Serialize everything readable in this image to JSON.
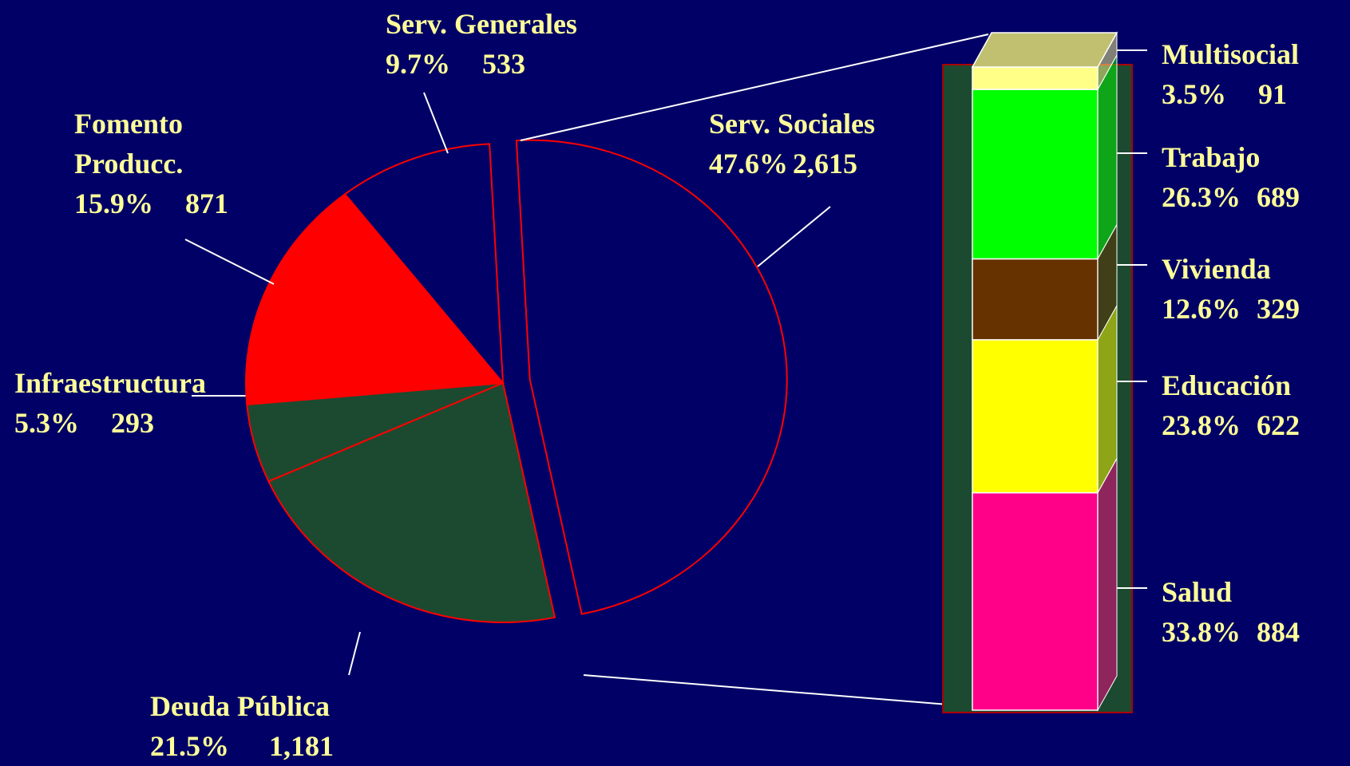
{
  "chart_data": [
    {
      "type": "pie",
      "categories": [
        "Serv. Sociales",
        "Deuda Pública",
        "Infraestructura",
        "Fomento Producc.",
        "Serv. Generales"
      ],
      "values": [
        2615,
        1181,
        293,
        871,
        533
      ],
      "value_labels": [
        "2,615",
        "1,181",
        "293",
        "871",
        "533"
      ],
      "percents": [
        47.6,
        21.5,
        5.3,
        15.9,
        9.7
      ],
      "percent_labels": [
        "47.6%",
        "21.5%",
        "5.3%",
        "15.9%",
        "9.7%"
      ],
      "colors": [
        "#000066",
        "#1c4a30",
        "#1c4a30",
        "#ff0000",
        "#000066"
      ]
    },
    {
      "type": "bar",
      "categories": [
        "Multisocial",
        "Trabajo",
        "Vivienda",
        "Educación",
        "Salud"
      ],
      "values": [
        91,
        689,
        329,
        622,
        884
      ],
      "value_labels": [
        "91",
        "689",
        "329",
        "622",
        "884"
      ],
      "percents": [
        3.5,
        26.3,
        12.6,
        23.8,
        33.8
      ],
      "percent_labels": [
        "3.5%",
        "26.3%",
        "12.6%",
        "23.8%",
        "33.8%"
      ],
      "colors": [
        "#ffff88",
        "#00ff00",
        "#663300",
        "#ffff00",
        "#ff0088"
      ]
    }
  ]
}
